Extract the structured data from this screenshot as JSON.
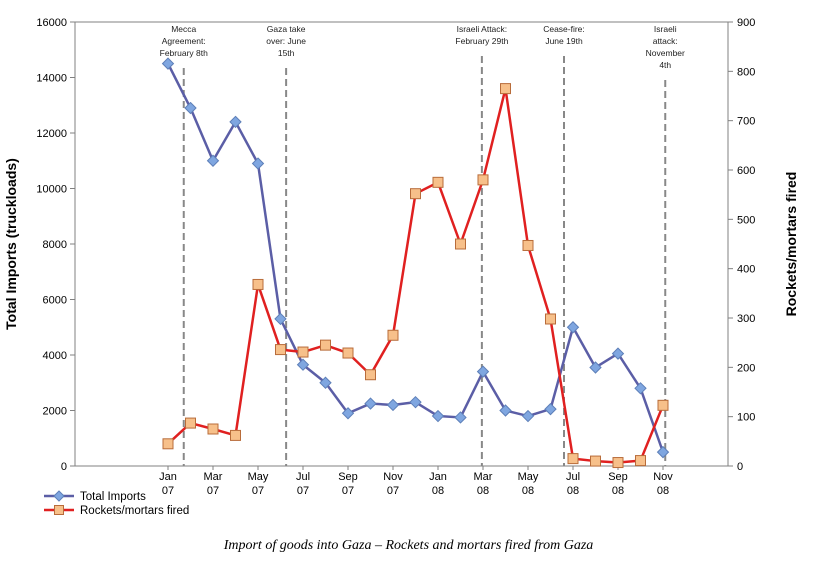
{
  "chart_data": {
    "type": "line",
    "caption": "Import of goods into Gaza – Rockets and mortars fired from Gaza",
    "left_axis": {
      "label": "Total Imports (truckloads)",
      "ylim": [
        0,
        16000
      ],
      "ticks": [
        "0",
        "2000",
        "4000",
        "6000",
        "8000",
        "10000",
        "12000",
        "14000",
        "16000"
      ]
    },
    "right_axis": {
      "label": "Rockets/mortars fired",
      "ylim": [
        0,
        900
      ],
      "ticks": [
        "0",
        "100",
        "200",
        "300",
        "400",
        "500",
        "600",
        "700",
        "800",
        "900"
      ]
    },
    "x_ticks": [
      {
        "line1": "Jan",
        "line2": "07",
        "index": 0
      },
      {
        "line1": "Mar",
        "line2": "07",
        "index": 2
      },
      {
        "line1": "May",
        "line2": "07",
        "index": 4
      },
      {
        "line1": "Jul",
        "line2": "07",
        "index": 6
      },
      {
        "line1": "Sep",
        "line2": "07",
        "index": 8
      },
      {
        "line1": "Nov",
        "line2": "07",
        "index": 10
      },
      {
        "line1": "Jan",
        "line2": "08",
        "index": 12
      },
      {
        "line1": "Mar",
        "line2": "08",
        "index": 14
      },
      {
        "line1": "May",
        "line2": "08",
        "index": 16
      },
      {
        "line1": "Jul",
        "line2": "08",
        "index": 18
      },
      {
        "line1": "Sep",
        "line2": "08",
        "index": 20
      },
      {
        "line1": "Nov",
        "line2": "08",
        "index": 22
      }
    ],
    "series": [
      {
        "name": "Total Imports",
        "axis": "left",
        "color": "#5b5ea6",
        "marker_fill": "#7fa6e0",
        "marker": "diamond",
        "values": [
          14500,
          12900,
          11000,
          12400,
          10900,
          5300,
          3650,
          3000,
          1900,
          2250,
          2200,
          2300,
          1800,
          1750,
          3400,
          2000,
          1800,
          2050,
          5000,
          3550,
          4050,
          2800,
          500
        ]
      },
      {
        "name": "Rockets/mortars fired",
        "axis": "right",
        "color": "#e02020",
        "marker_fill": "#f7c08a",
        "marker": "square",
        "values": [
          45,
          87,
          75,
          62,
          368,
          236,
          231,
          245,
          229,
          185,
          265,
          552,
          575,
          450,
          580,
          765,
          447,
          298,
          15,
          10,
          7,
          11,
          123
        ]
      }
    ],
    "annotations": [
      {
        "lines": [
          "Mecca",
          "Agreement:",
          "February 8th"
        ],
        "at": 0.7
      },
      {
        "lines": [
          "Gaza take",
          "over: June",
          "15th"
        ],
        "at": 5.25
      },
      {
        "lines": [
          "Israeli Attack:",
          "February 29th"
        ],
        "at": 13.95
      },
      {
        "lines": [
          "Cease-fire:",
          "June 19th"
        ],
        "at": 17.6
      },
      {
        "lines": [
          "Israeli",
          "attack:",
          "November",
          "4th"
        ],
        "at": 22.1
      }
    ],
    "legend_placement": "bottom-left",
    "grid": false
  }
}
